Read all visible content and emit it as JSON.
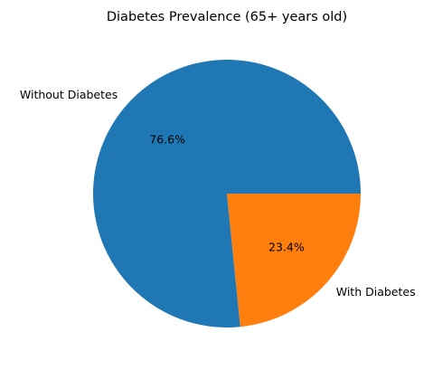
{
  "chart_data": {
    "type": "pie",
    "title": "Diabetes Prevalence (65+ years old)",
    "slices": [
      {
        "label": "Without Diabetes",
        "value": 76.6,
        "pct_label": "76.6%",
        "color": "#1f77b4"
      },
      {
        "label": "With Diabetes",
        "value": 23.4,
        "pct_label": "23.4%",
        "color": "#ff7f0e"
      }
    ],
    "start_angle_deg": 0,
    "direction": "counterclockwise",
    "legend": "none"
  }
}
